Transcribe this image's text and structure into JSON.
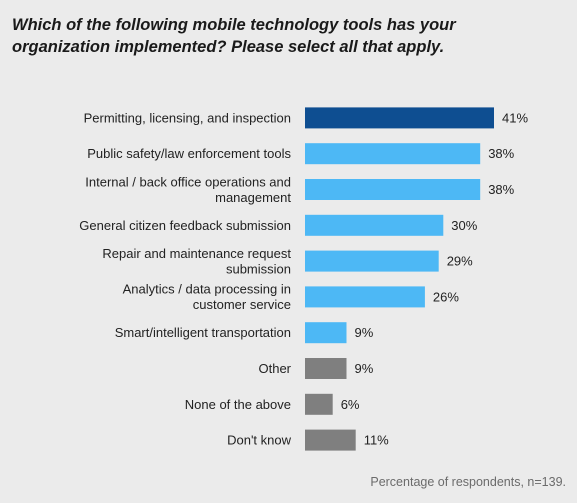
{
  "title": "Which of the following mobile technology tools has your\norganization implemented? Please select all that apply.",
  "footnote": "Percentage of respondents, n=139.",
  "colors": {
    "highlight": "#0e4e91",
    "primary": "#4db8f5",
    "neutral": "#7f7f7f"
  },
  "chart_data": {
    "type": "bar",
    "orientation": "horizontal",
    "title": "Which of the following mobile technology tools has your organization implemented? Please select all that apply.",
    "categories": [
      [
        "Permitting, licensing, and inspection"
      ],
      [
        "Public safety/law enforcement tools"
      ],
      [
        "Internal / back office operations and",
        "management"
      ],
      [
        "General citizen feedback submission"
      ],
      [
        "Repair and maintenance request",
        "submission"
      ],
      [
        "Analytics / data processing in",
        "customer service"
      ],
      [
        "Smart/intelligent transportation"
      ],
      [
        "Other"
      ],
      [
        "None of the above"
      ],
      [
        "Don't know"
      ]
    ],
    "values": [
      41,
      38,
      38,
      30,
      29,
      26,
      9,
      9,
      6,
      11
    ],
    "value_labels": [
      "41%",
      "38%",
      "38%",
      "30%",
      "29%",
      "26%",
      "9%",
      "9%",
      "6%",
      "11%"
    ],
    "bar_colors": [
      "highlight",
      "primary",
      "primary",
      "primary",
      "primary",
      "primary",
      "primary",
      "neutral",
      "neutral",
      "neutral"
    ],
    "xlim": [
      0,
      41
    ],
    "grid": false,
    "legend": "none"
  }
}
